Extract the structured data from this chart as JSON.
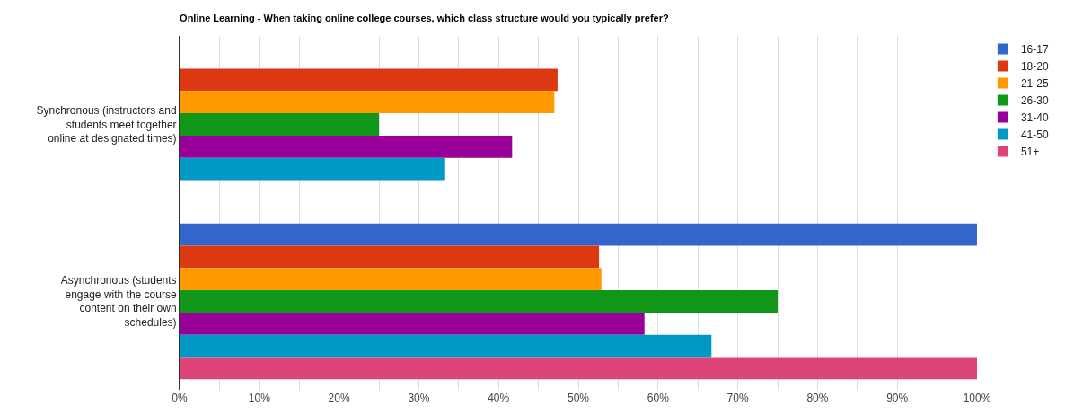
{
  "chart_data": {
    "type": "bar",
    "orientation": "horizontal",
    "title": "Online Learning - When taking online college courses, which class structure would you typically prefer?",
    "categories": [
      "Synchronous (instructors and students meet together online at designated times)",
      "Asynchronous (students engage with the course content on their own schedules)"
    ],
    "series": [
      {
        "name": "16-17",
        "color": "#3366cc",
        "values": [
          null,
          100
        ]
      },
      {
        "name": "18-20",
        "color": "#dc3912",
        "values": [
          47.4,
          52.6
        ]
      },
      {
        "name": "21-25",
        "color": "#ff9900",
        "values": [
          47.0,
          52.9
        ]
      },
      {
        "name": "26-30",
        "color": "#109618",
        "values": [
          25.0,
          75.0
        ]
      },
      {
        "name": "31-40",
        "color": "#990099",
        "values": [
          41.7,
          58.3
        ]
      },
      {
        "name": "41-50",
        "color": "#0099c6",
        "values": [
          33.3,
          66.7
        ]
      },
      {
        "name": "51+",
        "color": "#dd4477",
        "values": [
          null,
          100
        ]
      }
    ],
    "xlim": [
      0,
      100
    ],
    "xticks": [
      {
        "value": 0,
        "label": "0%"
      },
      {
        "value": 5,
        "label": null
      },
      {
        "value": 10,
        "label": "10%"
      },
      {
        "value": 15,
        "label": null
      },
      {
        "value": 20,
        "label": "20%"
      },
      {
        "value": 25,
        "label": null
      },
      {
        "value": 30,
        "label": "30%"
      },
      {
        "value": 35,
        "label": null
      },
      {
        "value": 40,
        "label": "40%"
      },
      {
        "value": 45,
        "label": null
      },
      {
        "value": 50,
        "label": "50%"
      },
      {
        "value": 55,
        "label": null
      },
      {
        "value": 60,
        "label": "60%"
      },
      {
        "value": 65,
        "label": null
      },
      {
        "value": 70,
        "label": "70%"
      },
      {
        "value": 75,
        "label": null
      },
      {
        "value": 80,
        "label": "80%"
      },
      {
        "value": 85,
        "label": null
      },
      {
        "value": 90,
        "label": "90%"
      },
      {
        "value": 95,
        "label": null
      },
      {
        "value": 100,
        "label": "100%"
      }
    ],
    "grid": "x",
    "legend": "top right"
  }
}
